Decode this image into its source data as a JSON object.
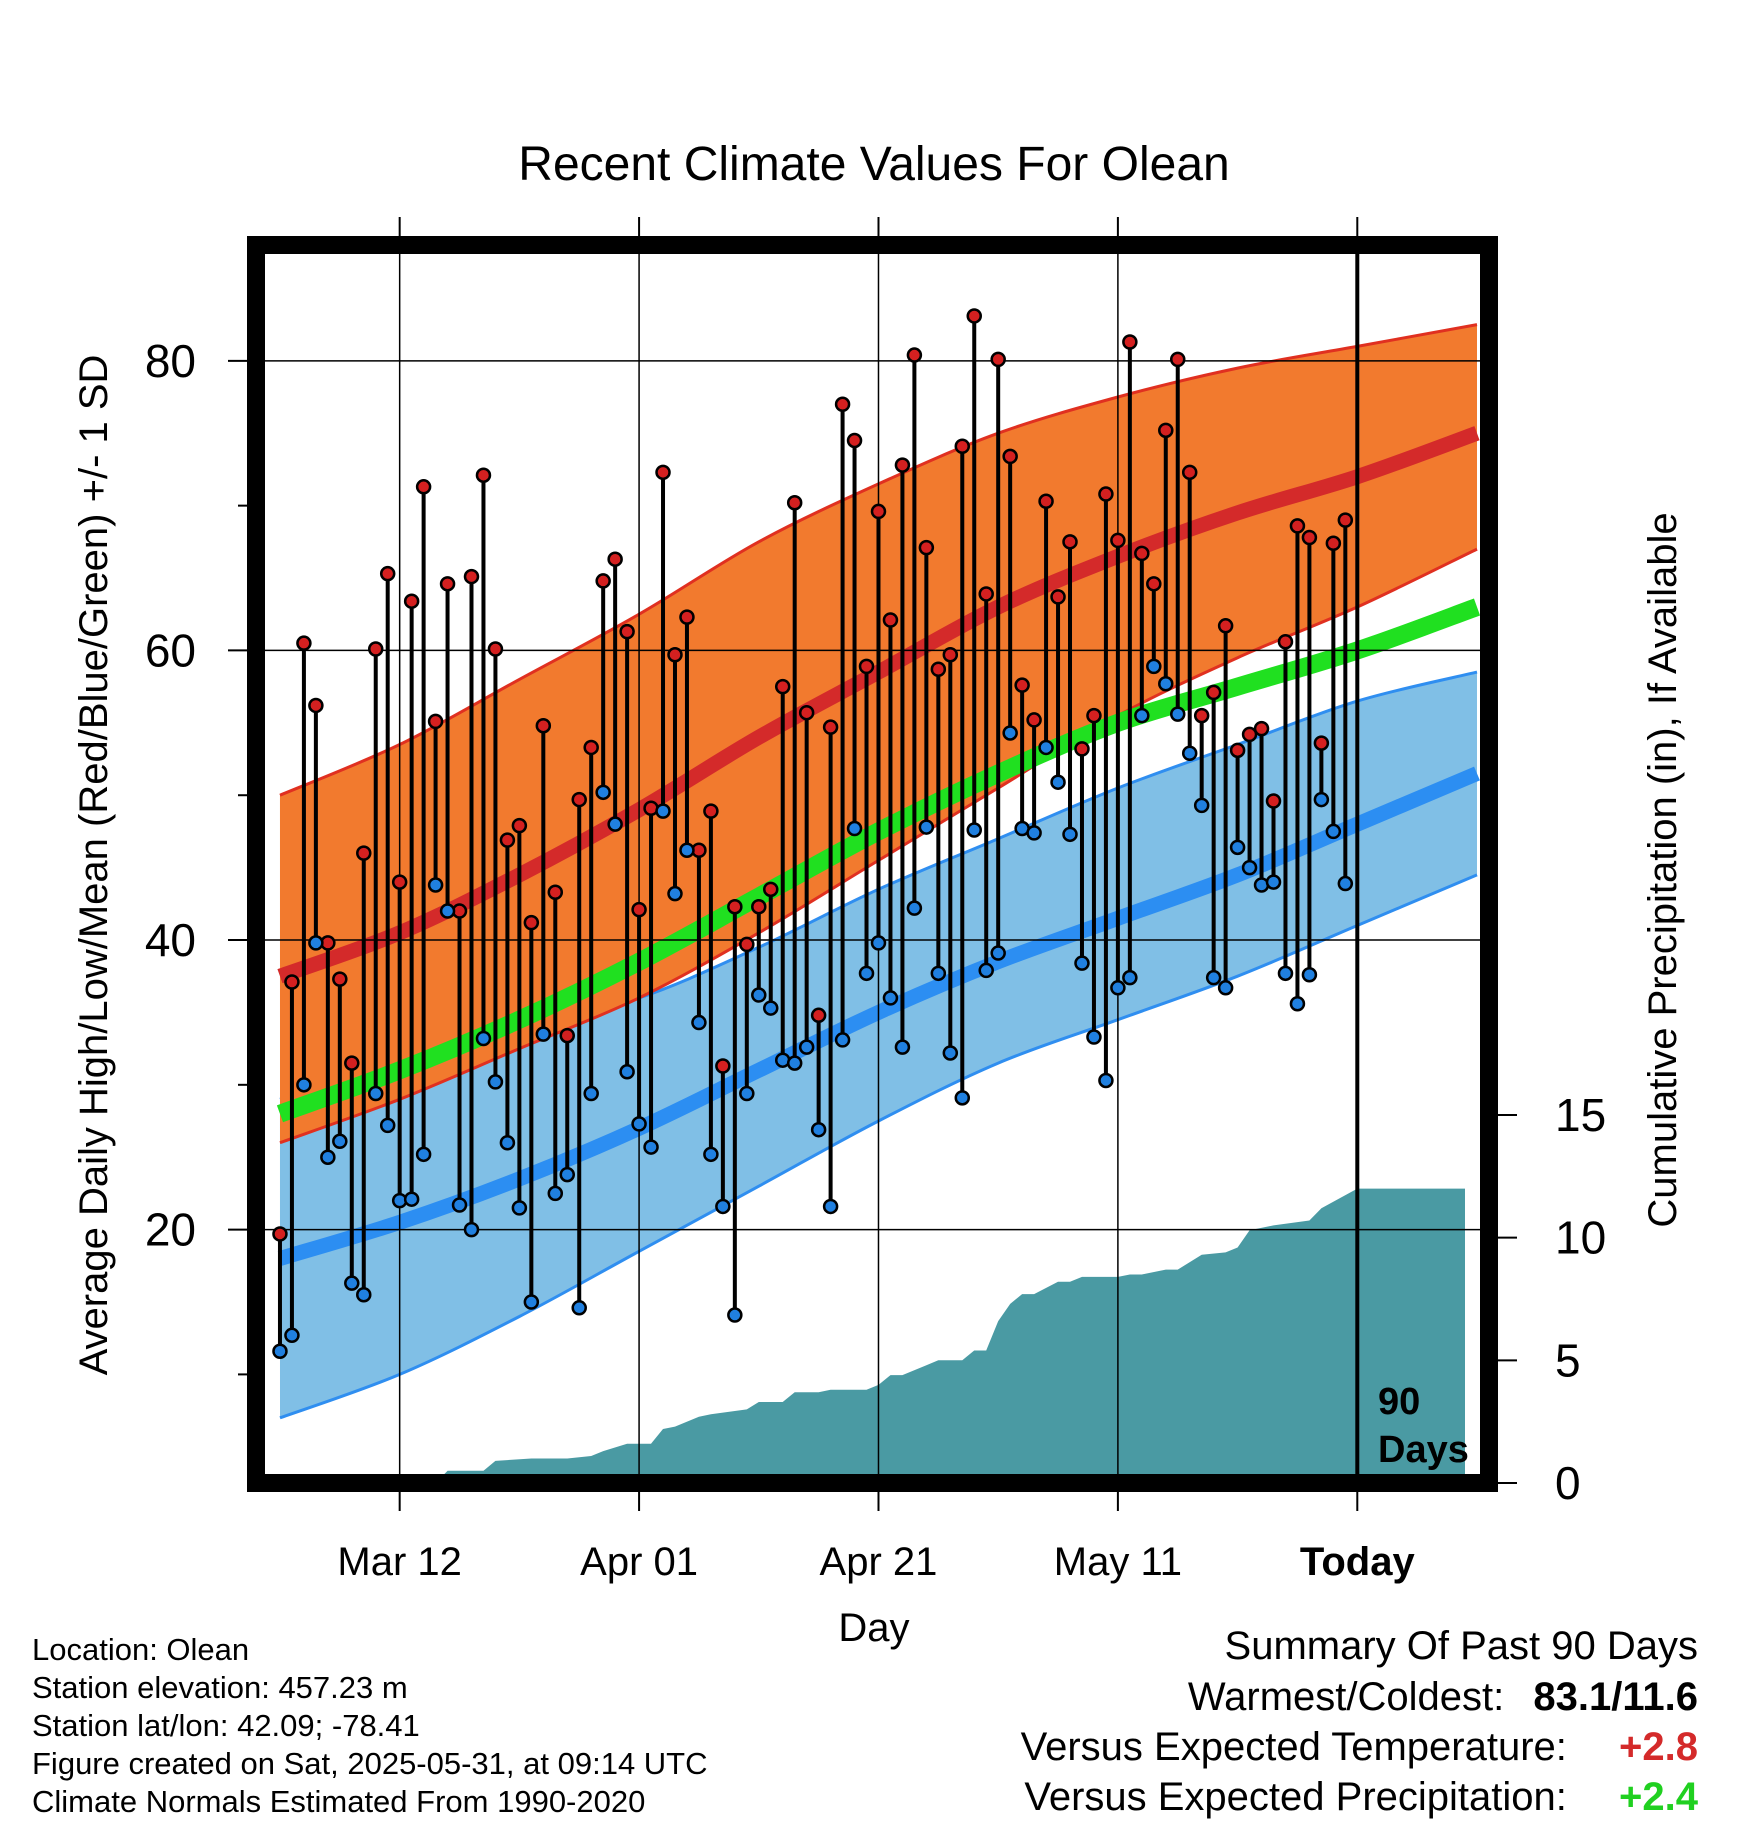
{
  "chart_data": {
    "type": "line",
    "title": "Recent Climate Values For Olean",
    "xlabel": "Day",
    "ylabel": "Average Daily High/Low/Mean (Red/Blue/Green) +/- 1 SD",
    "y2label": "Cumulative Precipitation (in), If Available",
    "x_tick_labels": [
      "Mar 12",
      "Apr 01",
      "Apr 21",
      "May 11",
      "Today"
    ],
    "x_tick_days": [
      10,
      30,
      50,
      70,
      90
    ],
    "y_ticks": [
      20,
      40,
      60,
      80
    ],
    "y2_ticks": [
      0,
      5,
      10,
      15
    ],
    "xlim": [
      -1,
      100
    ],
    "ylim": [
      2.5,
      88
    ],
    "grid": true,
    "today_marker": {
      "day": 90,
      "label_line1": "90",
      "label_line2": "Days"
    },
    "normals": {
      "day": [
        0,
        10,
        20,
        30,
        40,
        50,
        60,
        70,
        80,
        90,
        100
      ],
      "high_mean": [
        37.5,
        40.5,
        44.5,
        49,
        54,
        58.5,
        63,
        66.5,
        69.5,
        72,
        75
      ],
      "high_upper": [
        50,
        53.5,
        58,
        62.5,
        67.5,
        71.5,
        75,
        77.5,
        79.5,
        81,
        82.5
      ],
      "high_lower": [
        26,
        29,
        32.5,
        36,
        40.5,
        45.5,
        50.5,
        55.5,
        59.5,
        63,
        67
      ],
      "mean_mean": [
        28,
        31,
        34.5,
        38.5,
        43,
        47.5,
        51.5,
        55,
        57.5,
        60,
        63
      ],
      "low_mean": [
        18,
        20.5,
        23.5,
        27,
        31,
        35,
        38.5,
        41.5,
        44.5,
        48,
        51.5
      ],
      "low_upper": [
        29,
        31.5,
        34,
        36,
        39.5,
        43.5,
        47,
        50.5,
        53.5,
        56.5,
        58.5
      ],
      "low_lower": [
        7,
        10,
        14,
        18.5,
        23,
        27.5,
        31.5,
        34.5,
        37.5,
        41,
        44.5
      ]
    },
    "series": [
      {
        "name": "High",
        "color": "#d42020",
        "values": [
          19.7,
          37.1,
          60.5,
          56.2,
          39.8,
          37.3,
          31.5,
          46.0,
          60.1,
          65.3,
          44.0,
          63.4,
          71.3,
          55.1,
          64.6,
          42.0,
          65.1,
          72.1,
          60.1,
          46.9,
          47.9,
          41.2,
          54.8,
          43.3,
          33.4,
          49.7,
          53.3,
          64.8,
          66.3,
          61.3,
          42.1,
          49.1,
          72.3,
          59.7,
          62.3,
          46.2,
          48.9,
          31.3,
          42.3,
          39.7,
          42.3,
          43.5,
          57.5,
          70.2,
          55.7,
          34.8,
          54.7,
          77.0,
          74.5,
          58.9,
          69.6,
          62.1,
          72.8,
          80.4,
          67.1,
          58.7,
          59.7,
          74.1,
          83.1,
          63.9,
          80.1,
          73.4,
          57.6,
          55.2,
          70.3,
          63.7,
          67.5,
          53.2,
          55.5,
          70.8,
          67.6,
          81.3,
          66.7,
          64.6,
          75.2,
          80.1,
          72.3,
          55.5,
          57.1,
          61.7,
          53.1,
          54.2,
          54.6,
          49.6,
          60.6,
          68.6,
          67.8,
          53.6,
          67.4,
          69.0
        ]
      },
      {
        "name": "Low",
        "color": "#2080e0",
        "values": [
          11.6,
          12.7,
          30.0,
          39.8,
          25.0,
          26.1,
          16.3,
          15.5,
          29.4,
          27.2,
          22.0,
          22.1,
          25.2,
          43.8,
          42.0,
          21.7,
          20.0,
          33.2,
          30.2,
          26.0,
          21.5,
          15.0,
          33.5,
          22.5,
          23.8,
          14.6,
          29.4,
          50.2,
          48.0,
          30.9,
          27.3,
          25.7,
          48.9,
          43.2,
          46.2,
          34.3,
          25.2,
          21.6,
          14.1,
          29.4,
          36.2,
          35.3,
          31.7,
          31.5,
          32.6,
          26.9,
          21.6,
          33.1,
          47.7,
          37.7,
          39.8,
          36.0,
          32.6,
          42.2,
          47.8,
          37.7,
          32.2,
          29.1,
          47.6,
          37.9,
          39.1,
          54.3,
          47.7,
          47.4,
          53.3,
          50.9,
          47.3,
          38.4,
          33.3,
          30.3,
          36.7,
          37.4,
          55.5,
          58.9,
          57.7,
          55.6,
          52.9,
          49.3,
          37.4,
          36.7,
          46.4,
          45.0,
          43.8,
          44.0,
          37.7,
          35.6,
          37.6,
          49.7,
          47.5,
          43.9
        ]
      }
    ],
    "precip_cumulative": {
      "day": [
        0,
        13,
        14,
        17,
        18,
        21,
        24,
        26,
        27,
        29,
        31,
        32,
        33,
        35,
        36,
        39,
        40,
        42,
        43,
        45,
        46,
        49,
        50,
        51,
        52,
        54,
        55,
        57,
        58,
        59,
        60,
        61,
        62,
        63,
        65,
        66,
        67,
        68,
        70,
        71,
        72,
        74,
        75,
        77,
        79,
        80,
        81,
        83,
        86,
        87,
        90,
        99
      ],
      "values": [
        0,
        0,
        0.5,
        0.5,
        0.9,
        1.0,
        1.0,
        1.1,
        1.3,
        1.6,
        1.6,
        2.2,
        2.3,
        2.7,
        2.8,
        3.0,
        3.3,
        3.3,
        3.7,
        3.7,
        3.8,
        3.8,
        4.0,
        4.4,
        4.4,
        4.8,
        5.0,
        5.0,
        5.4,
        5.4,
        6.6,
        7.3,
        7.7,
        7.7,
        8.2,
        8.2,
        8.4,
        8.4,
        8.4,
        8.5,
        8.5,
        8.7,
        8.7,
        9.3,
        9.4,
        9.6,
        10.3,
        10.5,
        10.7,
        11.2,
        12.0,
        12.0
      ]
    },
    "colors": {
      "high_band": "#f27a2e",
      "high_edge": "#e03020",
      "high_mean": "#d42a2a",
      "low_band": "#80bfe6",
      "low_edge": "#2f8ef0",
      "low_mean": "#2c8ef2",
      "mean_line": "#20e020",
      "precip_fill": "#4a9aa3"
    }
  },
  "info": {
    "location": "Location: Olean",
    "elevation": "Station elevation: 457.23 m",
    "latlon": "Station lat/lon: 42.09; -78.41",
    "created": "Figure created on Sat, 2025-05-31, at 09:14 UTC",
    "normals": "Climate Normals Estimated From 1990-2020"
  },
  "summary": {
    "title": "Summary Of Past 90 Days",
    "warm_cold_label": "Warmest/Coldest:",
    "warm_cold_value": "83.1/11.6",
    "temp_label": "Versus Expected Temperature:",
    "temp_value": "+2.8",
    "temp_color": "#d42a2a",
    "precip_label": "Versus Expected Precipitation:",
    "precip_value": "+2.4",
    "precip_color": "#20d020"
  }
}
